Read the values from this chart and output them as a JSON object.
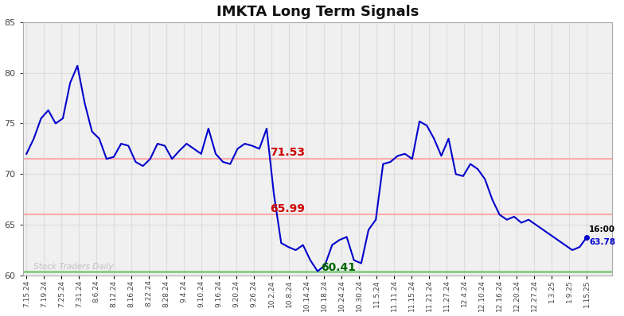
{
  "title": "IMKTA Long Term Signals",
  "ylim": [
    60,
    85
  ],
  "yticks": [
    60,
    65,
    70,
    75,
    80,
    85
  ],
  "hline1": 71.53,
  "hline2": 65.99,
  "hline_color": "#ffaaaa",
  "green_line": 60.35,
  "green_line_color": "#88cc88",
  "label1": "71.53",
  "label2": "65.99",
  "label3": "60.41",
  "label1_color": "#cc0000",
  "label2_color": "#cc0000",
  "label3_color": "#006600",
  "watermark": "Stock Traders Daily",
  "watermark_color": "#bbbbbb",
  "end_label_time": "16:00",
  "end_label_price": "63.78",
  "line_color": "#0000cc",
  "dot_color": "#0000cc",
  "x_labels": [
    "7.15.24",
    "7.19.24",
    "7.25.24",
    "7.31.24",
    "8.6.24",
    "8.12.24",
    "8.16.24",
    "8.22.24",
    "8.28.24",
    "9.4.24",
    "9.10.24",
    "9.16.24",
    "9.20.24",
    "9.26.24",
    "10.2.24",
    "10.8.24",
    "10.14.24",
    "10.18.24",
    "10.24.24",
    "10.30.24",
    "11.5.24",
    "11.11.24",
    "11.15.24",
    "11.21.24",
    "11.27.24",
    "12.4.24",
    "12.10.24",
    "12.16.24",
    "12.20.24",
    "12.27.24",
    "1.3.25",
    "1.9.25",
    "1.15.25"
  ],
  "background_color": "#f0f0f0",
  "grid_color": "#dddddd",
  "key_points_x": [
    0,
    1,
    2,
    3,
    4,
    5,
    6,
    7,
    8,
    9,
    10,
    11,
    12,
    13,
    14,
    15,
    16,
    17,
    18,
    19,
    20,
    21,
    22,
    23,
    24,
    25,
    26,
    27,
    28,
    29,
    30,
    31,
    32,
    33,
    34,
    35,
    36,
    37,
    38,
    39,
    40,
    41,
    42,
    43,
    44,
    45,
    46,
    47,
    48,
    49,
    50,
    51,
    52,
    53,
    54,
    55,
    56,
    57,
    58,
    59,
    60,
    61,
    62,
    63,
    64,
    65,
    66,
    67,
    68,
    69,
    70,
    71,
    72,
    73,
    74,
    75,
    76,
    77
  ],
  "key_points_y": [
    72.0,
    73.5,
    75.5,
    76.3,
    75.0,
    75.5,
    79.0,
    80.7,
    77.0,
    74.2,
    73.5,
    71.5,
    71.7,
    73.0,
    72.8,
    71.2,
    70.8,
    71.5,
    73.0,
    72.8,
    71.5,
    72.3,
    73.0,
    72.5,
    72.0,
    74.5,
    72.0,
    71.2,
    71.0,
    72.5,
    73.0,
    72.8,
    72.5,
    74.5,
    68.0,
    63.2,
    62.8,
    62.5,
    63.0,
    61.5,
    60.41,
    61.0,
    63.0,
    63.5,
    63.8,
    61.5,
    61.2,
    64.5,
    65.5,
    71.0,
    71.2,
    71.8,
    72.0,
    71.5,
    75.2,
    74.8,
    73.5,
    71.8,
    73.5,
    70.0,
    69.8,
    71.0,
    70.5,
    69.5,
    67.5,
    66.0,
    65.5,
    65.8,
    65.2,
    65.5,
    65.0,
    64.5,
    64.0,
    63.5,
    63.0,
    62.5,
    62.8,
    63.78
  ]
}
